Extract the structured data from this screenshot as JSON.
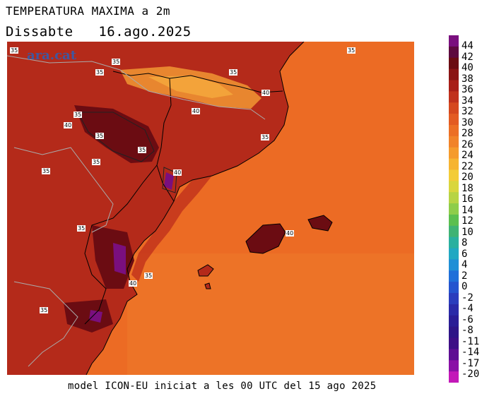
{
  "header": {
    "title": "TEMPERATURA MAXIMA a 2m",
    "day": "Dissabte",
    "date": "16.ago.2025"
  },
  "footer": {
    "model_text": "model ICON-EU iniciat a les 00 UTC del 15 ago 2025"
  },
  "logo": {
    "text": "ara.cat"
  },
  "colorbar": {
    "labels": [
      "44",
      "42",
      "40",
      "38",
      "36",
      "34",
      "32",
      "30",
      "28",
      "26",
      "24",
      "22",
      "20",
      "18",
      "16",
      "14",
      "12",
      "10",
      "8",
      "6",
      "4",
      "2",
      "0",
      "-2",
      "-4",
      "-6",
      "-8",
      "-11",
      "-14",
      "-17",
      "-20"
    ],
    "colors": [
      "#7a0f7e",
      "#5e0a3f",
      "#6b0c12",
      "#8a1414",
      "#a81e17",
      "#c0311c",
      "#d5481e",
      "#e35b22",
      "#ec6f25",
      "#f18329",
      "#f59b2c",
      "#f6b431",
      "#f3cc37",
      "#d9d63d",
      "#b7d444",
      "#8ecd4a",
      "#5bbf4f",
      "#3fb374",
      "#2ab09f",
      "#21a8c2",
      "#1f8fd6",
      "#1f6fd9",
      "#2454cf",
      "#2a3dbd",
      "#2a2aa8",
      "#2a1d96",
      "#2e1587",
      "#3e0f86",
      "#5e0d93",
      "#8a10a6",
      "#c318b8"
    ]
  },
  "contour_labels": [
    "35",
    "35",
    "35",
    "35",
    "35",
    "40",
    "35",
    "40",
    "40",
    "35",
    "35",
    "35",
    "40",
    "35",
    "35",
    "35",
    "40",
    "35",
    "40",
    "35"
  ],
  "map": {
    "sea_color": "#ec6b24",
    "land_base_color": "#b42a1a",
    "hot_color": "#6b0c12",
    "extreme_color": "#7a0f7e",
    "cool_color": "#e8862f"
  }
}
